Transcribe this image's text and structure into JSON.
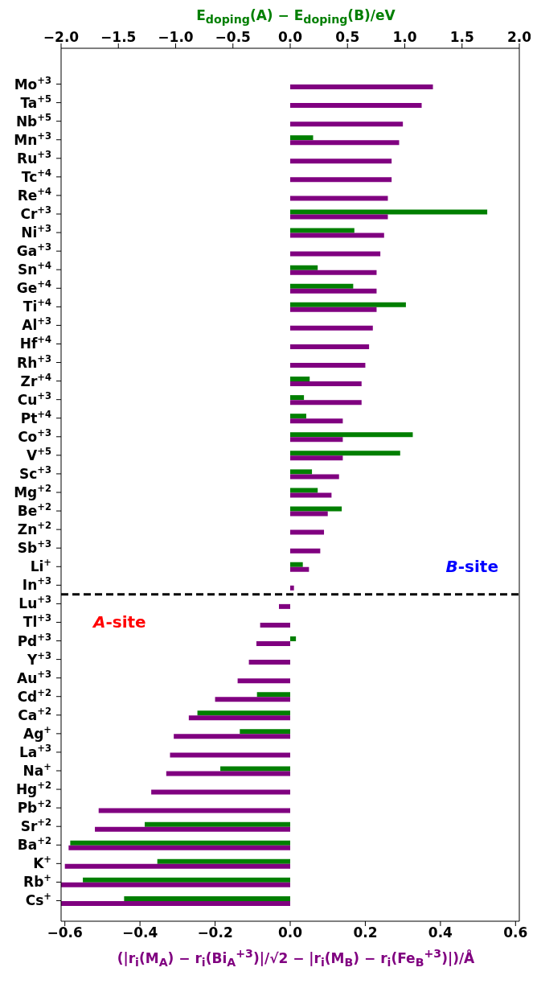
{
  "chart_data": {
    "type": "bar",
    "orientation": "horizontal",
    "xlabel": "(|r$_{i}$(M$_{A}$) − r$_{i}$(Bi$_{A}$$^{+3}$)|/√2 − |r$_{i}$(M$_{B}$) − r$_{i}$(Fe$_{B}$$^{+3}$)|)/Å",
    "x2label": "E$_{doping}$(A) − E$_{doping}$(B)/eV",
    "categories": [
      "Mo$^{+3}$",
      "Ta$^{+5}$",
      "Nb$^{+5}$",
      "Mn$^{+3}$",
      "Ru$^{+3}$",
      "Tc$^{+4}$",
      "Re$^{+4}$",
      "Cr$^{+3}$",
      "Ni$^{+3}$",
      "Ga$^{+3}$",
      "Sn$^{+4}$",
      "Ge$^{+4}$",
      "Ti$^{+4}$",
      "Al$^{+3}$",
      "Hf$^{+4}$",
      "Rh$^{+3}$",
      "Zr$^{+4}$",
      "Cu$^{+3}$",
      "Pt$^{+4}$",
      "Co$^{+3}$",
      "V$^{+5}$",
      "Sc$^{+3}$",
      "Mg$^{+2}$",
      "Be$^{+2}$",
      "Zn$^{+2}$",
      "Sb$^{+3}$",
      "Li$^{+}$",
      "In$^{+3}$",
      "Lu$^{+3}$",
      "Tl$^{+3}$",
      "Pd$^{+3}$",
      "Y$^{+3}$",
      "Au$^{+3}$",
      "Cd$^{+2}$",
      "Ca$^{+2}$",
      "Ag$^{+}$",
      "La$^{+3}$",
      "Na$^{+}$",
      "Hg$^{+2}$",
      "Pb$^{+2}$",
      "Sr$^{+2}$",
      "Ba$^{+2}$",
      "K$^{+}$",
      "Rb$^{+}$",
      "Cs$^{+}$"
    ],
    "series": [
      {
        "color": "#007f00",
        "axis": "x2",
        "values": [
          null,
          null,
          null,
          0.2,
          null,
          null,
          null,
          1.72,
          0.56,
          null,
          0.24,
          0.55,
          1.01,
          null,
          null,
          null,
          0.17,
          0.12,
          0.14,
          1.07,
          0.96,
          0.19,
          0.24,
          0.45,
          null,
          null,
          0.11,
          null,
          null,
          null,
          0.05,
          null,
          null,
          -0.29,
          -0.81,
          -0.44,
          null,
          -0.61,
          null,
          null,
          -1.27,
          -1.92,
          -1.16,
          -1.81,
          -1.45
        ]
      },
      {
        "color": "#800080",
        "values": [
          0.38,
          0.35,
          0.3,
          0.29,
          0.27,
          0.27,
          0.26,
          0.26,
          0.25,
          0.24,
          0.23,
          0.23,
          0.23,
          0.22,
          0.21,
          0.2,
          0.19,
          0.19,
          0.14,
          0.14,
          0.14,
          0.13,
          0.11,
          0.1,
          0.09,
          0.08,
          0.05,
          0.01,
          -0.03,
          -0.08,
          -0.09,
          -0.11,
          -0.14,
          -0.2,
          -0.27,
          -0.31,
          -0.32,
          -0.33,
          -0.37,
          -0.51,
          -0.52,
          -0.59,
          -0.6,
          -0.61,
          -0.61
        ]
      }
    ],
    "xlim": [
      -0.61,
      0.61
    ],
    "xticks": [
      {
        "value": -0.6,
        "label": "−0.6"
      },
      {
        "value": -0.4,
        "label": "−0.4"
      },
      {
        "value": -0.2,
        "label": "−0.2"
      },
      {
        "value": 0,
        "label": "0.0"
      },
      {
        "value": 0.2,
        "label": "0.2"
      },
      {
        "value": 0.4,
        "label": "0.4"
      },
      {
        "value": 0.6,
        "label": "0.6"
      }
    ],
    "x2lim": [
      -2,
      2
    ],
    "x2ticks": [
      {
        "value": -2,
        "label": "−2.0"
      },
      {
        "value": -1.5,
        "label": "−1.5"
      },
      {
        "value": -1,
        "label": "−1.0"
      },
      {
        "value": -0.5,
        "label": "−0.5"
      },
      {
        "value": 0,
        "label": "0.0"
      },
      {
        "value": 0.5,
        "label": "0.5"
      },
      {
        "value": 1,
        "label": "1.0"
      },
      {
        "value": 1.5,
        "label": "1.5"
      },
      {
        "value": 2,
        "label": "2.0"
      }
    ],
    "annotations": [
      "B-site",
      "A-site"
    ]
  }
}
